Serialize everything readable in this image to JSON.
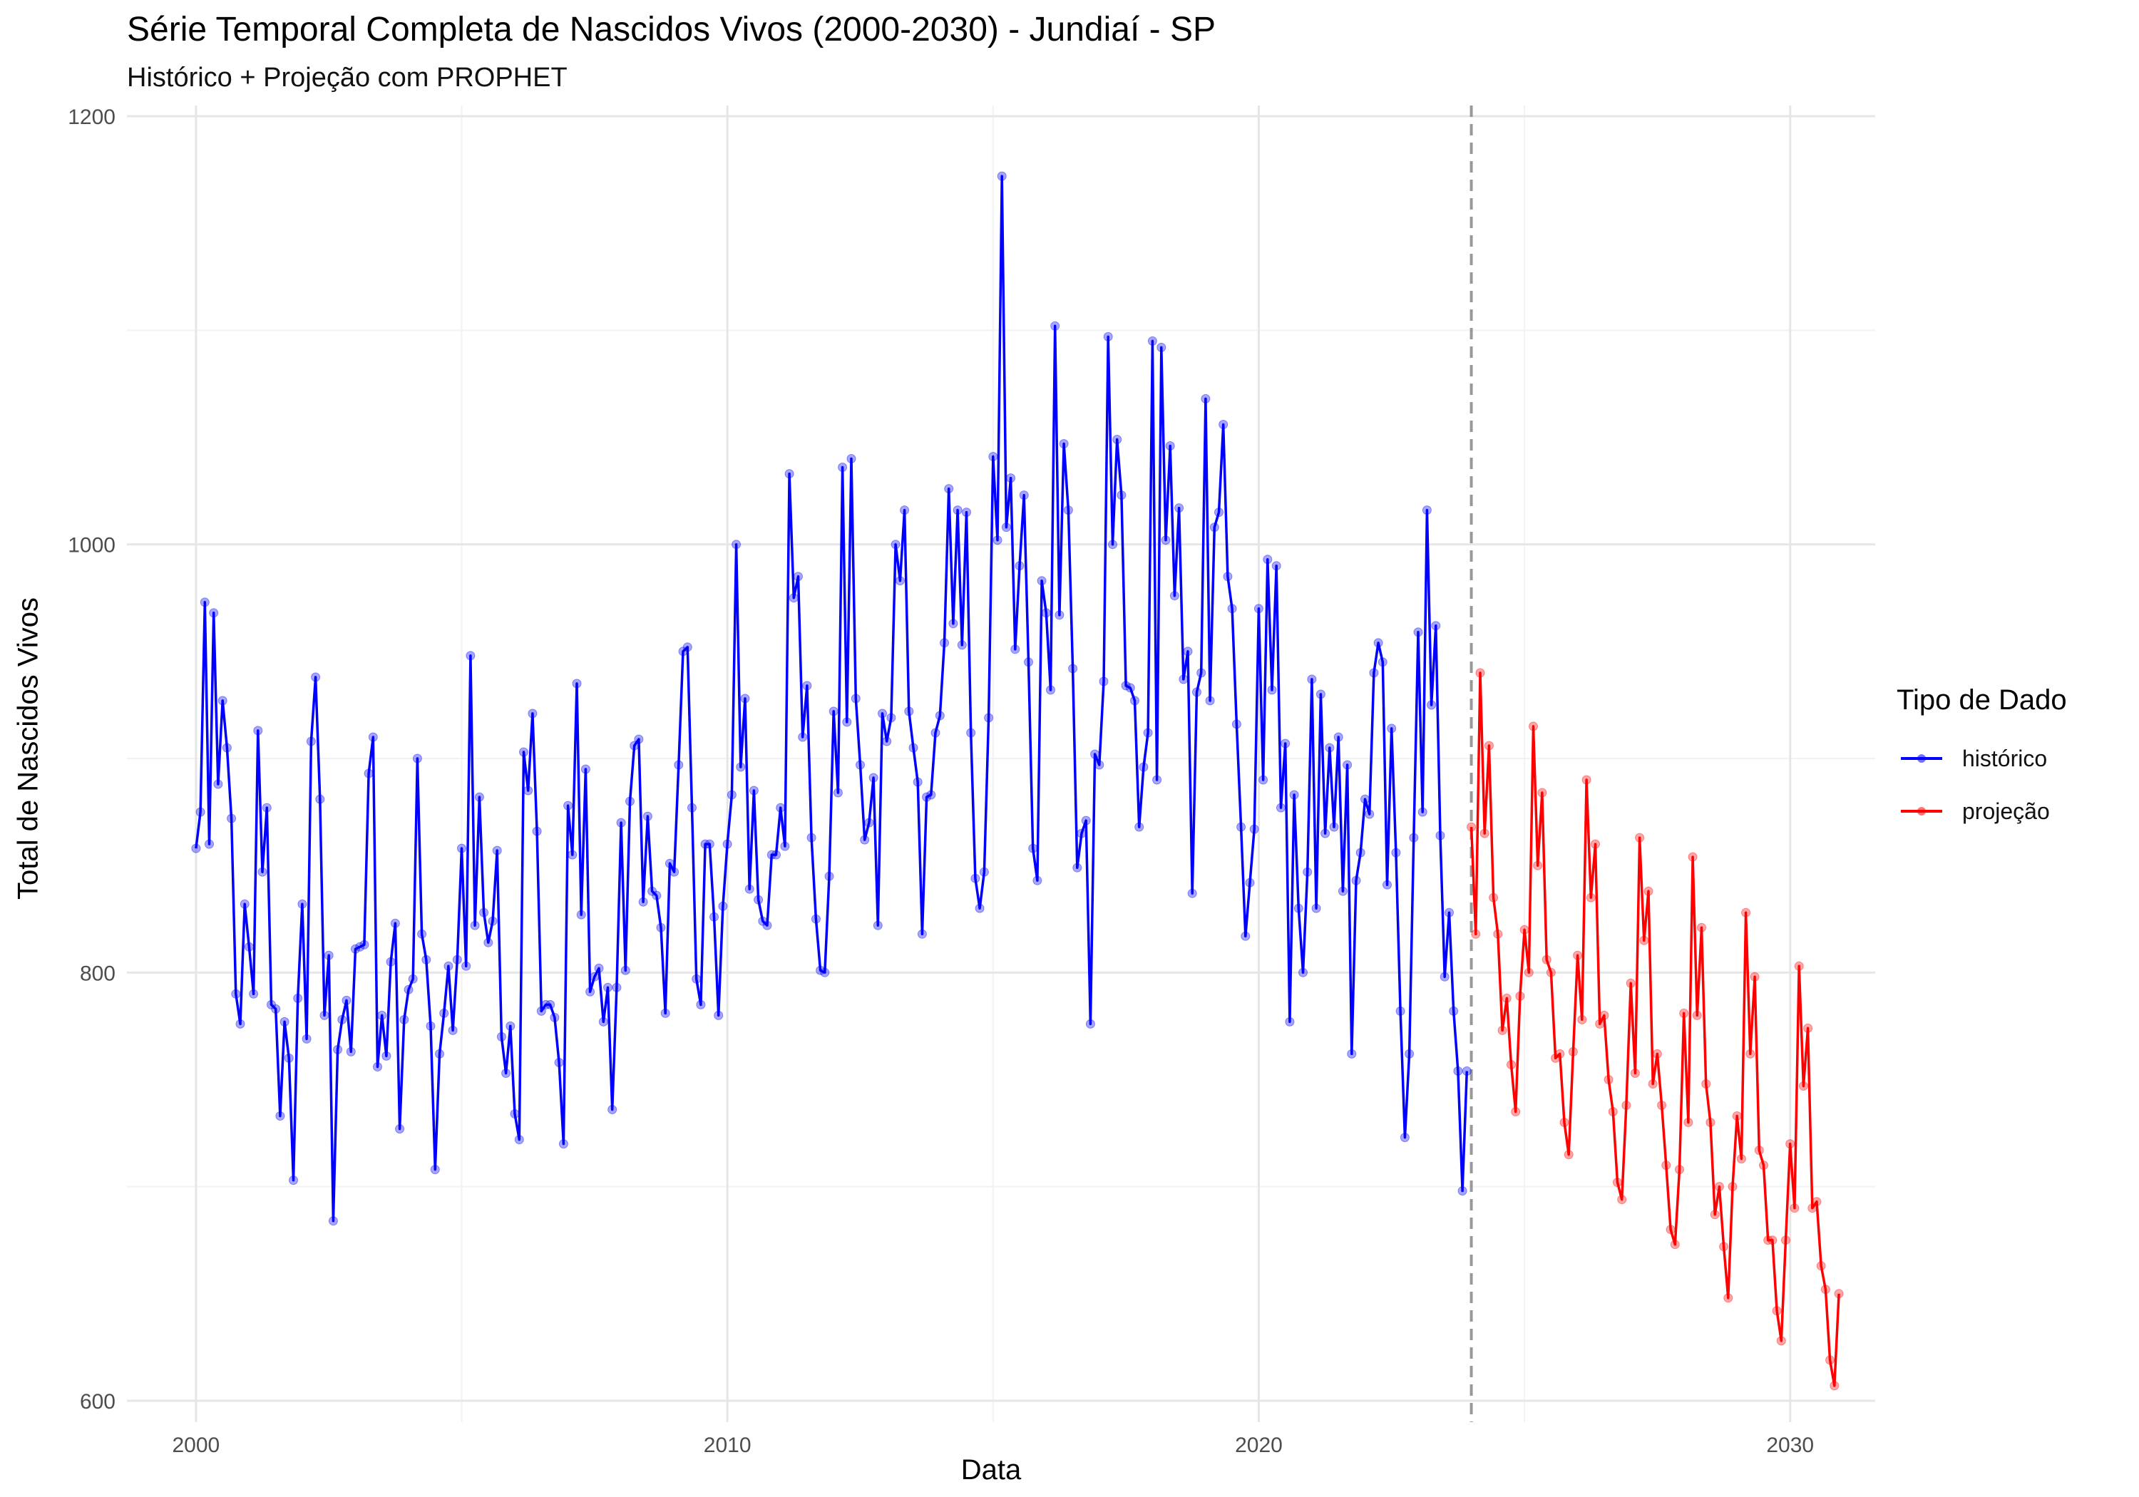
{
  "chart_data": {
    "type": "line",
    "title": "Série Temporal Completa de Nascidos Vivos (2000-2030) -  Jundiaí - SP",
    "subtitle": "Histórico + Projeção com PROPHET",
    "xlabel": "Data",
    "ylabel": "Total de Nascidos Vivos",
    "legend_title": "Tipo de Dado",
    "legend_position": "right",
    "grid": true,
    "xlim": [
      1998.7,
      2031.6
    ],
    "ylim": [
      590,
      1205
    ],
    "x_ticks": [
      2000,
      2010,
      2020,
      2030
    ],
    "x_tick_labels": [
      "2000",
      "2010",
      "2020",
      "2030"
    ],
    "y_ticks": [
      600,
      800,
      1000,
      1200
    ],
    "y_tick_labels": [
      "600",
      "800",
      "1000",
      "1200"
    ],
    "cutoff_x": 2024.0,
    "series": [
      {
        "name": "histórico",
        "color": "#0000ff",
        "start": 2000.0,
        "step": 0.08333,
        "values": [
          858,
          875,
          973,
          860,
          968,
          888,
          927,
          905,
          872,
          790,
          776,
          832,
          812,
          790,
          913,
          847,
          877,
          785,
          783,
          733,
          777,
          760,
          703,
          788,
          832,
          769,
          908,
          938,
          881,
          780,
          808,
          684,
          764,
          778,
          787,
          763,
          811,
          812,
          813,
          893,
          910,
          756,
          780,
          761,
          805,
          823,
          727,
          778,
          792,
          797,
          900,
          818,
          806,
          775,
          708,
          762,
          781,
          803,
          773,
          806,
          858,
          803,
          948,
          822,
          882,
          828,
          814,
          824,
          857,
          770,
          753,
          775,
          734,
          722,
          903,
          885,
          921,
          866,
          782,
          785,
          785,
          779,
          758,
          720,
          878,
          855,
          935,
          827,
          895,
          791,
          798,
          802,
          777,
          793,
          736,
          793,
          870,
          801,
          880,
          906,
          909,
          833,
          873,
          838,
          836,
          821,
          781,
          851,
          847,
          897,
          950,
          952,
          877,
          797,
          785,
          860,
          860,
          826,
          780,
          831,
          860,
          883,
          1000,
          896,
          928,
          839,
          885,
          834,
          824,
          822,
          855,
          855,
          877,
          859,
          1033,
          975,
          985,
          910,
          934,
          863,
          825,
          801,
          800,
          845,
          922,
          884,
          1036,
          917,
          1040,
          928,
          897,
          862,
          870,
          891,
          822,
          921,
          908,
          919,
          1000,
          983,
          1016,
          922,
          905,
          889,
          818,
          882,
          883,
          912,
          920,
          954,
          1026,
          963,
          1016,
          953,
          1015,
          912,
          844,
          830,
          847,
          919,
          1041,
          1002,
          1172,
          1008,
          1031,
          951,
          990,
          1023,
          945,
          858,
          843,
          983,
          968,
          932,
          1102,
          967,
          1047,
          1016,
          942,
          849,
          865,
          871,
          776,
          902,
          897,
          936,
          1097,
          1000,
          1049,
          1023,
          934,
          933,
          927,
          868,
          896,
          912,
          1095,
          890,
          1092,
          1002,
          1046,
          976,
          1017,
          937,
          950,
          837,
          931,
          940,
          1068,
          927,
          1008,
          1015,
          1056,
          985,
          970,
          916,
          868,
          817,
          842,
          867,
          970,
          890,
          993,
          932,
          990,
          877,
          907,
          777,
          883,
          830,
          800,
          847,
          937,
          830,
          930,
          865,
          905,
          868,
          910,
          838,
          897,
          762,
          843,
          856,
          881,
          874,
          940,
          954,
          945,
          841,
          914,
          856,
          782,
          723,
          762,
          863,
          959,
          875,
          1016,
          925,
          962,
          864,
          798,
          828,
          782,
          754,
          698,
          754
        ]
      },
      {
        "name": "projeção",
        "color": "#ff0000",
        "start": 2024.0,
        "step": 0.08333,
        "values": [
          868,
          818,
          940,
          865,
          906,
          835,
          818,
          773,
          788,
          757,
          735,
          789,
          820,
          800,
          915,
          850,
          884,
          806,
          800,
          760,
          762,
          730,
          715,
          763,
          808,
          778,
          890,
          835,
          860,
          776,
          780,
          750,
          735,
          702,
          694,
          738,
          795,
          753,
          863,
          815,
          838,
          748,
          762,
          738,
          710,
          680,
          673,
          708,
          781,
          730,
          854,
          780,
          821,
          748,
          730,
          687,
          700,
          672,
          648,
          700,
          733,
          713,
          828,
          762,
          798,
          717,
          710,
          675,
          675,
          642,
          628,
          675,
          720,
          690,
          803,
          747,
          774,
          690,
          693,
          663,
          652,
          619,
          607,
          650
        ]
      }
    ]
  }
}
